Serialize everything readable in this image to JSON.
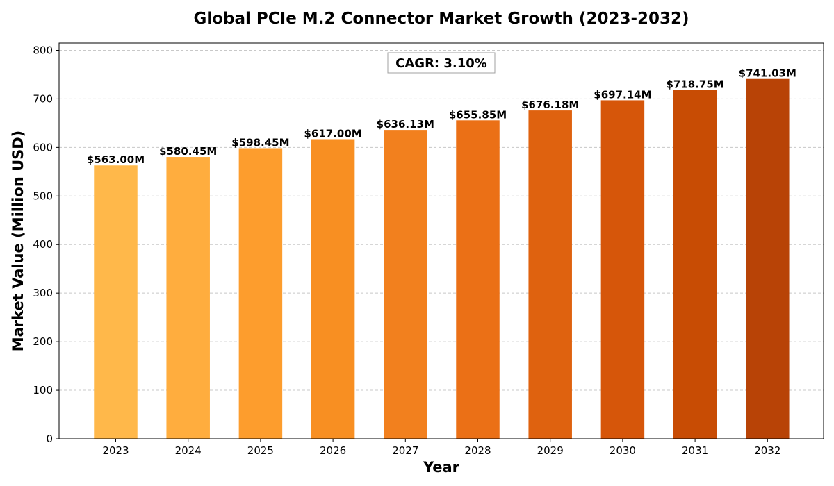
{
  "chart_data": {
    "type": "bar",
    "title": "Global PCIe M.2 Connector Market Growth (2023-2032)",
    "xlabel": "Year",
    "ylabel": "Market Value (Million USD)",
    "categories": [
      "2023",
      "2024",
      "2025",
      "2026",
      "2027",
      "2028",
      "2029",
      "2030",
      "2031",
      "2032"
    ],
    "values": [
      563.0,
      580.45,
      598.45,
      617.0,
      636.13,
      655.85,
      676.18,
      697.14,
      718.75,
      741.03
    ],
    "data_labels": [
      "$563.00M",
      "$580.45M",
      "$598.45M",
      "$617.00M",
      "$636.13M",
      "$655.85M",
      "$676.18M",
      "$697.14M",
      "$718.75M",
      "$741.03M"
    ],
    "colors": [
      "#FFB84A",
      "#FFAD3E",
      "#FD9D2D",
      "#F88F22",
      "#F2801E",
      "#EB7016",
      "#DF620F",
      "#D6560A",
      "#C84C04",
      "#B84306"
    ],
    "ylim": [
      0,
      815
    ],
    "yticks": [
      0,
      100,
      200,
      300,
      400,
      500,
      600,
      700,
      800
    ],
    "grid": true,
    "annotation": "CAGR: 3.10%"
  }
}
